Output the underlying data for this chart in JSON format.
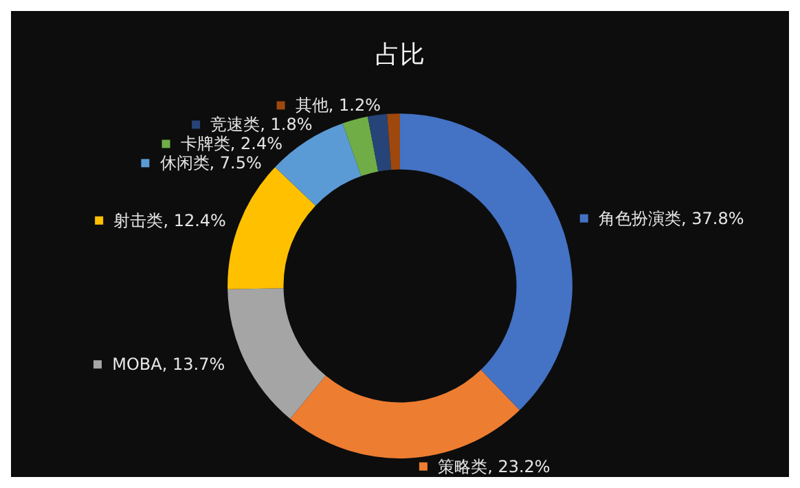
{
  "chart_data": {
    "type": "donut",
    "title": "占比",
    "categories": [
      "角色扮演类",
      "策略类",
      "MOBA",
      "射击类",
      "休闲类",
      "卡牌类",
      "竞速类",
      "其他"
    ],
    "values": [
      37.8,
      23.2,
      13.7,
      12.4,
      7.5,
      2.4,
      1.8,
      1.2
    ],
    "colors": [
      "#4472c4",
      "#ed7d31",
      "#a5a5a5",
      "#ffc000",
      "#5b9bd5",
      "#70ad47",
      "#264478",
      "#9e480e"
    ],
    "value_labels": [
      ", 37.8%",
      ", 23.2%",
      ", 13.7%",
      ", 12.4%",
      ", 7.5%",
      ", 2.4%",
      ", 1.8%",
      ", 1.2%"
    ],
    "legend": "left"
  }
}
